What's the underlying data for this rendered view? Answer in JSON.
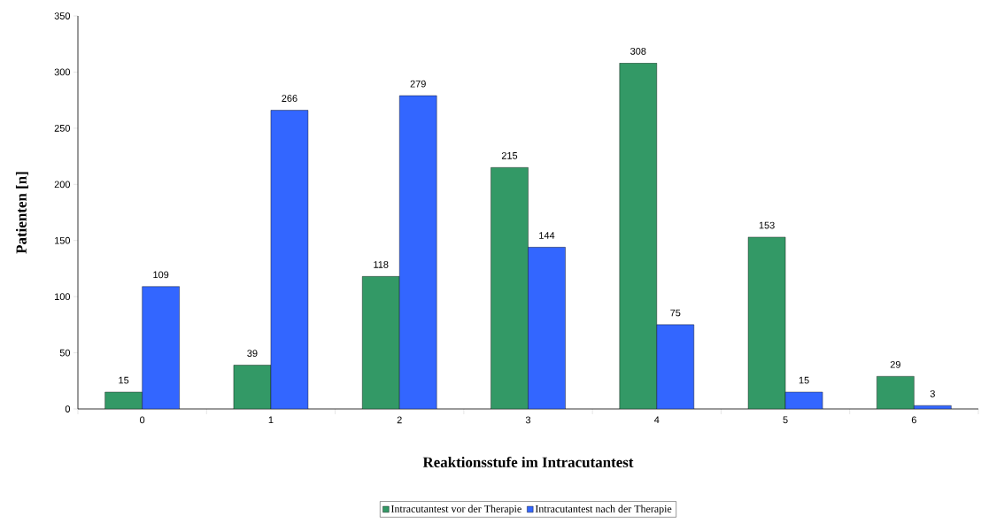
{
  "chart_data": {
    "type": "bar",
    "xlabel": "Reaktionsstufe im Intracutantest",
    "ylabel": "Patienten [n]",
    "categories": [
      "0",
      "1",
      "2",
      "3",
      "4",
      "5",
      "6"
    ],
    "series": [
      {
        "name": "Intracutantest vor der Therapie",
        "color": "#339966",
        "values": [
          15,
          39,
          118,
          215,
          308,
          153,
          29
        ]
      },
      {
        "name": "Intracutantest nach der Therapie",
        "color": "#3366ff",
        "values": [
          109,
          266,
          279,
          144,
          75,
          15,
          3
        ]
      }
    ],
    "ylim": [
      0,
      350
    ],
    "yticks": [
      0,
      50,
      100,
      150,
      200,
      250,
      300,
      350
    ],
    "grid": false,
    "legend": "bottom",
    "data_labels": true
  }
}
